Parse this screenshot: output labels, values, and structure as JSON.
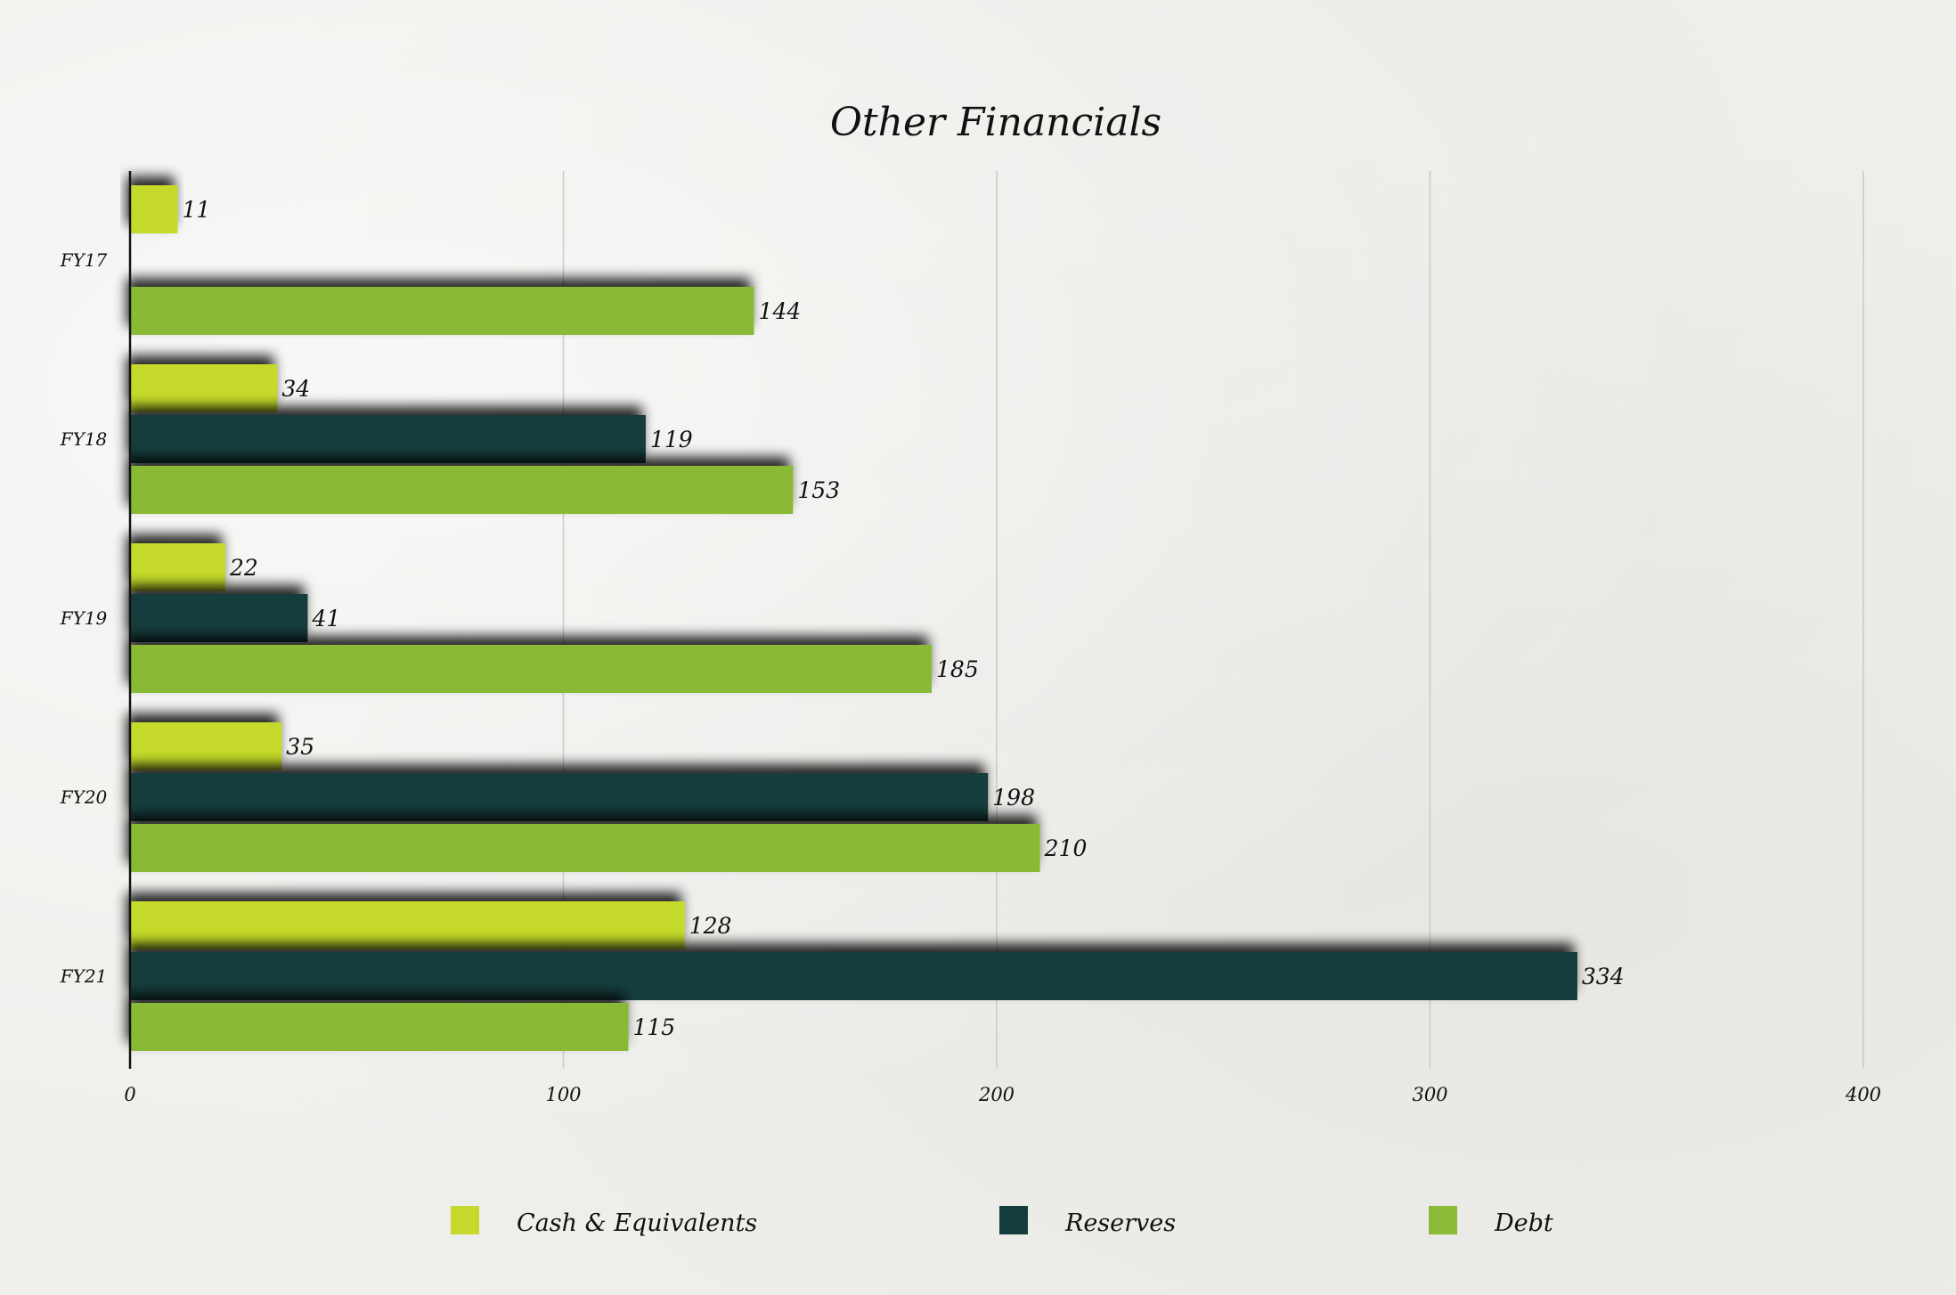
{
  "chart_data": {
    "type": "bar",
    "orientation": "horizontal",
    "title": "Other Financials",
    "categories": [
      "FY17",
      "FY18",
      "FY19",
      "FY20",
      "FY21"
    ],
    "series": [
      {
        "name": "Cash & Equivalents",
        "color": "#c5da2c",
        "values": [
          11,
          34,
          22,
          35,
          128
        ]
      },
      {
        "name": "Reserves",
        "color": "#143d3d",
        "values": [
          null,
          119,
          41,
          198,
          334
        ]
      },
      {
        "name": "Debt",
        "color": "#8aba36",
        "values": [
          144,
          153,
          185,
          210,
          115
        ]
      }
    ],
    "xlim": [
      0,
      400
    ],
    "xticks": [
      0,
      100,
      200,
      300,
      400
    ],
    "xlabel": "",
    "ylabel": "",
    "grid": "vertical",
    "legend_position": "bottom"
  }
}
